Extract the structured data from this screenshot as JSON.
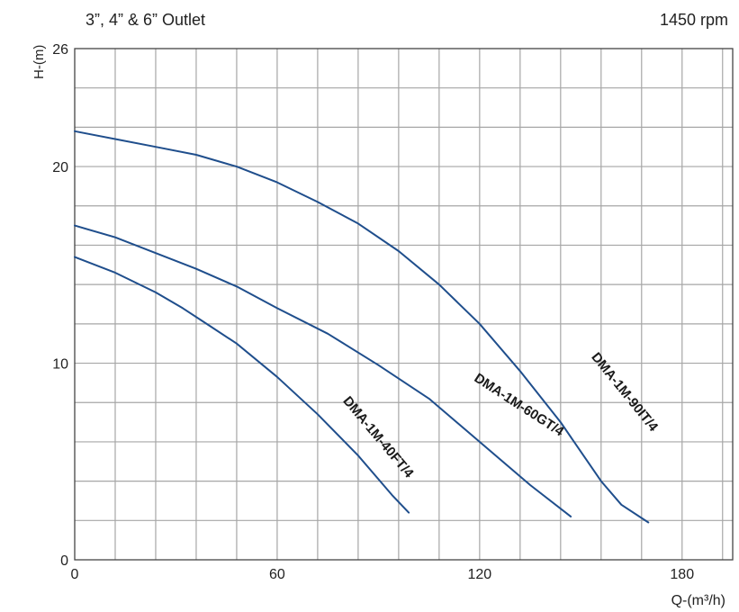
{
  "header": {
    "left": "3”, 4” & 6” Outlet",
    "right": "1450 rpm"
  },
  "chart_data": {
    "type": "line",
    "title": "",
    "xlabel": "Q-(m³/h)",
    "ylabel": "H-(m)",
    "xlim": [
      0,
      195
    ],
    "ylim": [
      0,
      26
    ],
    "xticks": [
      0,
      60,
      120,
      180
    ],
    "yticks": [
      0,
      10,
      20,
      26
    ],
    "grid": true,
    "legend": "none",
    "colors": {
      "series": "#1f4e8c",
      "grid": "#a6a6a6",
      "frame": "#444444"
    },
    "series": [
      {
        "name": "DMA-1M-40FT/4",
        "x": [
          0,
          12,
          24,
          32,
          40,
          48,
          60,
          72,
          84,
          94,
          99
        ],
        "y": [
          15.4,
          14.6,
          13.6,
          12.8,
          11.9,
          11.0,
          9.3,
          7.4,
          5.3,
          3.3,
          2.4
        ]
      },
      {
        "name": "DMA-1M-60GT/4",
        "x": [
          0,
          12,
          24,
          36,
          48,
          60,
          75,
          90,
          105,
          120,
          135,
          147
        ],
        "y": [
          17.0,
          16.4,
          15.6,
          14.8,
          13.9,
          12.8,
          11.5,
          9.9,
          8.2,
          6.0,
          3.8,
          2.2
        ]
      },
      {
        "name": "DMA-1M-90IT/4",
        "x": [
          0,
          12,
          24,
          36,
          48,
          60,
          72,
          84,
          96,
          108,
          120,
          132,
          144,
          156,
          162,
          170
        ],
        "y": [
          21.8,
          21.4,
          21.0,
          20.6,
          20.0,
          19.2,
          18.2,
          17.1,
          15.7,
          14.0,
          12.0,
          9.6,
          7.0,
          4.0,
          2.8,
          1.9
        ]
      }
    ]
  }
}
